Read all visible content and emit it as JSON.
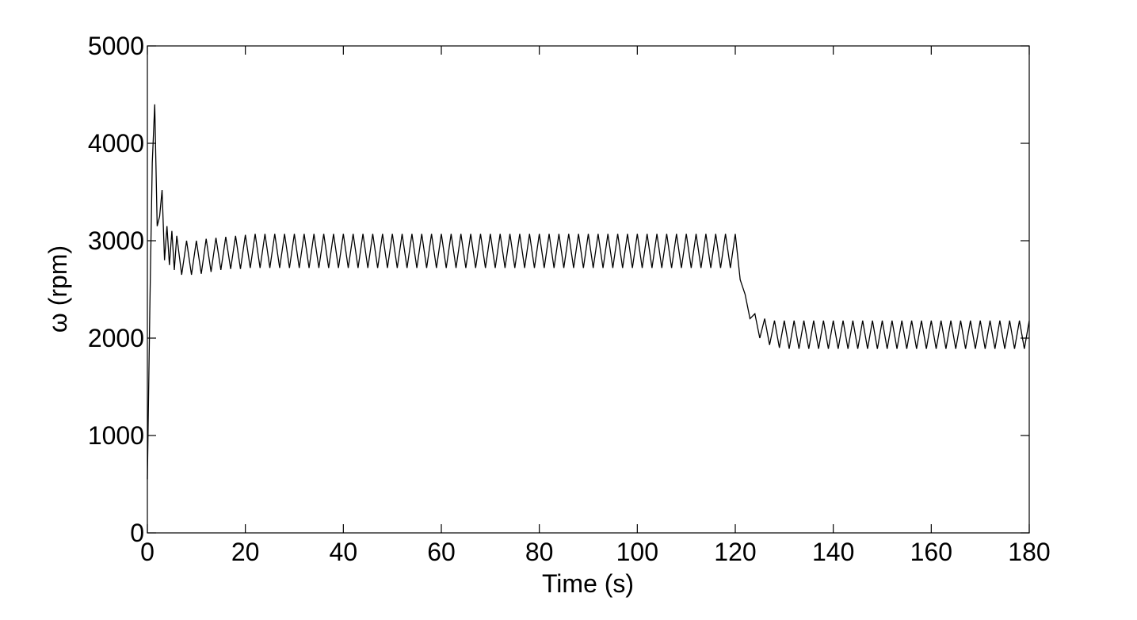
{
  "chart_data": {
    "type": "line",
    "xlabel": "Time (s)",
    "ylabel": "ω (rpm)",
    "color": "#000000",
    "xlim": [
      0,
      180
    ],
    "xticks": [
      0,
      20,
      40,
      60,
      80,
      100,
      120,
      140,
      160,
      180
    ],
    "ylim": [
      0,
      5000
    ],
    "yticks": [
      0,
      1000,
      2000,
      3000,
      4000,
      5000
    ],
    "grid": false,
    "x": [
      0,
      0.5,
      1,
      1.5,
      2,
      2.5,
      3,
      3.5,
      4,
      4.5,
      5,
      5.5,
      6,
      7,
      8,
      9,
      10,
      11,
      12,
      13,
      14,
      15,
      16,
      17,
      18,
      19,
      20,
      21,
      22,
      23,
      24,
      25,
      26,
      27,
      28,
      29,
      30,
      31,
      32,
      33,
      34,
      35,
      36,
      37,
      38,
      39,
      40,
      41,
      42,
      43,
      44,
      45,
      46,
      47,
      48,
      49,
      50,
      51,
      52,
      53,
      54,
      55,
      56,
      57,
      58,
      59,
      60,
      61,
      62,
      63,
      64,
      65,
      66,
      67,
      68,
      69,
      70,
      71,
      72,
      73,
      74,
      75,
      76,
      77,
      78,
      79,
      80,
      81,
      82,
      83,
      84,
      85,
      86,
      87,
      88,
      89,
      90,
      91,
      92,
      93,
      94,
      95,
      96,
      97,
      98,
      99,
      100,
      101,
      102,
      103,
      104,
      105,
      106,
      107,
      108,
      109,
      110,
      111,
      112,
      113,
      114,
      115,
      116,
      117,
      118,
      119,
      120,
      121,
      122,
      123,
      124,
      125,
      126,
      127,
      128,
      129,
      130,
      131,
      132,
      133,
      134,
      135,
      136,
      137,
      138,
      139,
      140,
      141,
      142,
      143,
      144,
      145,
      146,
      147,
      148,
      149,
      150,
      151,
      152,
      153,
      154,
      155,
      156,
      157,
      158,
      159,
      160,
      161,
      162,
      163,
      164,
      165,
      166,
      167,
      168,
      169,
      170,
      171,
      172,
      173,
      174,
      175,
      176,
      177,
      178,
      179,
      180
    ],
    "values": [
      550,
      2300,
      3800,
      4400,
      3150,
      3250,
      3520,
      2800,
      3150,
      2750,
      3100,
      2700,
      3050,
      2650,
      3000,
      2650,
      3000,
      2660,
      3020,
      2680,
      3030,
      2700,
      3040,
      2710,
      3050,
      2710,
      3060,
      2720,
      3070,
      2720,
      3070,
      2720,
      3070,
      2720,
      3070,
      2720,
      3070,
      2720,
      3070,
      2720,
      3070,
      2720,
      3070,
      2720,
      3070,
      2720,
      3070,
      2720,
      3070,
      2720,
      3070,
      2720,
      3070,
      2720,
      3070,
      2720,
      3070,
      2720,
      3070,
      2720,
      3070,
      2720,
      3070,
      2720,
      3070,
      2720,
      3070,
      2720,
      3070,
      2720,
      3070,
      2720,
      3070,
      2720,
      3070,
      2720,
      3070,
      2720,
      3070,
      2720,
      3070,
      2720,
      3070,
      2720,
      3070,
      2720,
      3070,
      2720,
      3070,
      2720,
      3070,
      2720,
      3070,
      2720,
      3070,
      2720,
      3070,
      2720,
      3070,
      2720,
      3070,
      2720,
      3070,
      2720,
      3070,
      2720,
      3070,
      2720,
      3070,
      2720,
      3070,
      2720,
      3070,
      2720,
      3070,
      2720,
      3070,
      2720,
      3070,
      2720,
      3070,
      2720,
      3070,
      2720,
      3070,
      2720,
      3070,
      2600,
      2450,
      2200,
      2250,
      2000,
      2200,
      1930,
      2180,
      1900,
      2180,
      1890,
      2180,
      1890,
      2180,
      1890,
      2180,
      1890,
      2180,
      1890,
      2180,
      1890,
      2180,
      1890,
      2180,
      1890,
      2180,
      1890,
      2180,
      1890,
      2180,
      1890,
      2180,
      1890,
      2180,
      1890,
      2180,
      1890,
      2180,
      1890,
      2180,
      1890,
      2180,
      1890,
      2180,
      1890,
      2180,
      1890,
      2180,
      1890,
      2180,
      1890,
      2180,
      1890,
      2180,
      1890,
      2180,
      1890,
      2180,
      1890,
      2180
    ]
  }
}
